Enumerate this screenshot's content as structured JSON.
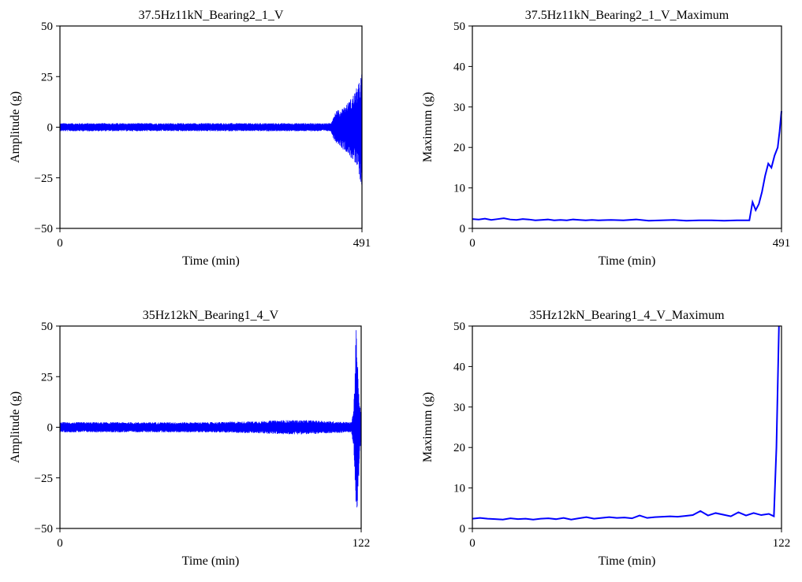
{
  "chart_data": [
    {
      "type": "line",
      "title": "37.5Hz11kN_Bearing2_1_V",
      "xlabel": "Time (min)",
      "ylabel": "Amplitude (g)",
      "xlim": [
        0,
        491
      ],
      "ylim": [
        -50,
        50
      ],
      "x_ticks": [
        "0",
        "491"
      ],
      "y_ticks": [
        "50",
        "25",
        "0",
        "−25",
        "−50"
      ],
      "grid": false,
      "color": "#0000ff",
      "series_kind": "vibration_envelope",
      "envelope": {
        "x": [
          0,
          100,
          200,
          300,
          400,
          440,
          445,
          450,
          455,
          460,
          465,
          470,
          475,
          480,
          485,
          488,
          491
        ],
        "upper": [
          2,
          2,
          2,
          2,
          2,
          2,
          6,
          9,
          8,
          10,
          11,
          13,
          15,
          18,
          21,
          24,
          28
        ],
        "lower": [
          -2,
          -2,
          -2,
          -2,
          -2,
          -2,
          -6,
          -8,
          -9,
          -11,
          -12,
          -14,
          -16,
          -19,
          -22,
          -26,
          -34
        ]
      }
    },
    {
      "type": "line",
      "title": "37.5Hz11kN_Bearing2_1_V_Maximum",
      "xlabel": "Time (min)",
      "ylabel": "Maximum (g)",
      "xlim": [
        0,
        491
      ],
      "ylim": [
        0,
        50
      ],
      "x_ticks": [
        "0",
        "491"
      ],
      "y_ticks": [
        "50",
        "40",
        "30",
        "20",
        "10",
        "0"
      ],
      "grid": false,
      "color": "#0000ff",
      "x": [
        0,
        10,
        20,
        30,
        40,
        50,
        60,
        70,
        80,
        90,
        100,
        110,
        120,
        130,
        140,
        150,
        160,
        170,
        180,
        190,
        200,
        220,
        240,
        260,
        280,
        300,
        320,
        340,
        360,
        380,
        400,
        420,
        440,
        445,
        450,
        455,
        460,
        465,
        470,
        475,
        480,
        485,
        488,
        491
      ],
      "y": [
        2.3,
        2.2,
        2.4,
        2.1,
        2.3,
        2.5,
        2.2,
        2.1,
        2.3,
        2.2,
        2.0,
        2.1,
        2.2,
        2.0,
        2.1,
        2.0,
        2.2,
        2.1,
        2.0,
        2.1,
        2.0,
        2.1,
        2.0,
        2.2,
        1.9,
        2.0,
        2.1,
        1.9,
        2.0,
        2.0,
        1.9,
        2.0,
        2.0,
        6.5,
        4.5,
        6.0,
        9.0,
        13.0,
        16.0,
        15.0,
        18.0,
        20.0,
        24.0,
        29.0
      ]
    },
    {
      "type": "line",
      "title": "35Hz12kN_Bearing1_4_V",
      "xlabel": "Time (min)",
      "ylabel": "Amplitude (g)",
      "xlim": [
        0,
        122
      ],
      "ylim": [
        -50,
        50
      ],
      "x_ticks": [
        "0",
        "122"
      ],
      "y_ticks": [
        "50",
        "25",
        "0",
        "−25",
        "−50"
      ],
      "grid": false,
      "color": "#0000ff",
      "series_kind": "vibration_envelope",
      "envelope": {
        "x": [
          0,
          30,
          60,
          80,
          90,
          100,
          110,
          118,
          119,
          120,
          121,
          122
        ],
        "upper": [
          2.5,
          2.5,
          2.5,
          3,
          3.5,
          3.5,
          3,
          2.5,
          10,
          50,
          18,
          5
        ],
        "lower": [
          -2.5,
          -2.5,
          -2.5,
          -3,
          -3.5,
          -3.5,
          -3,
          -2.5,
          -10,
          -50,
          -25,
          -5
        ]
      }
    },
    {
      "type": "line",
      "title": "35Hz12kN_Bearing1_4_V_Maximum",
      "xlabel": "Time (min)",
      "ylabel": "Maximum (g)",
      "xlim": [
        0,
        122
      ],
      "ylim": [
        0,
        50
      ],
      "x_ticks": [
        "0",
        "122"
      ],
      "y_ticks": [
        "50",
        "40",
        "30",
        "20",
        "10",
        "0"
      ],
      "grid": false,
      "color": "#0000ff",
      "x": [
        0,
        3,
        6,
        9,
        12,
        15,
        18,
        21,
        24,
        27,
        30,
        33,
        36,
        39,
        42,
        45,
        48,
        51,
        54,
        57,
        60,
        63,
        66,
        69,
        72,
        75,
        78,
        81,
        84,
        87,
        90,
        93,
        96,
        99,
        102,
        105,
        108,
        111,
        114,
        117,
        119,
        120,
        121
      ],
      "y": [
        2.4,
        2.6,
        2.4,
        2.3,
        2.2,
        2.5,
        2.3,
        2.4,
        2.2,
        2.4,
        2.5,
        2.3,
        2.6,
        2.2,
        2.5,
        2.8,
        2.4,
        2.6,
        2.8,
        2.6,
        2.7,
        2.5,
        3.2,
        2.6,
        2.8,
        2.9,
        3.0,
        2.9,
        3.1,
        3.3,
        4.3,
        3.2,
        3.8,
        3.4,
        3.0,
        4.0,
        3.2,
        3.8,
        3.3,
        3.6,
        3.0,
        20.0,
        50.0
      ]
    }
  ]
}
